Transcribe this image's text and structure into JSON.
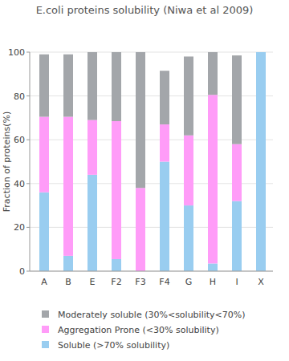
{
  "chart_data": {
    "type": "bar",
    "stacked": true,
    "title": "E.coli proteins solubility (Niwa et al 2009)",
    "y_label": "Fraction of proteins(%)",
    "categories": [
      "A",
      "B",
      "E",
      "F2",
      "F3",
      "F4",
      "G",
      "H",
      "I",
      "X"
    ],
    "series": [
      {
        "name": "Soluble (>70% solubility)",
        "color": "#99cdf0",
        "values": [
          36,
          7,
          44,
          5.5,
          0,
          50,
          30,
          3.5,
          32,
          100
        ]
      },
      {
        "name": "Aggregation Prone (<30% solubility)",
        "color": "#ff9cf8",
        "values": [
          34.5,
          63.5,
          25,
          63,
          38,
          17,
          32,
          77,
          26,
          0
        ]
      },
      {
        "name": "Moderately soluble (30%<solubility<70%)",
        "color": "#a3a6aa",
        "values": [
          28.5,
          28.5,
          31,
          31.5,
          62,
          24.5,
          36,
          19.5,
          40.5,
          0
        ]
      }
    ],
    "ylim": [
      0,
      100
    ],
    "yticks": [
      0,
      20,
      40,
      60,
      80,
      100
    ],
    "grid": true,
    "legend": "bottom"
  }
}
